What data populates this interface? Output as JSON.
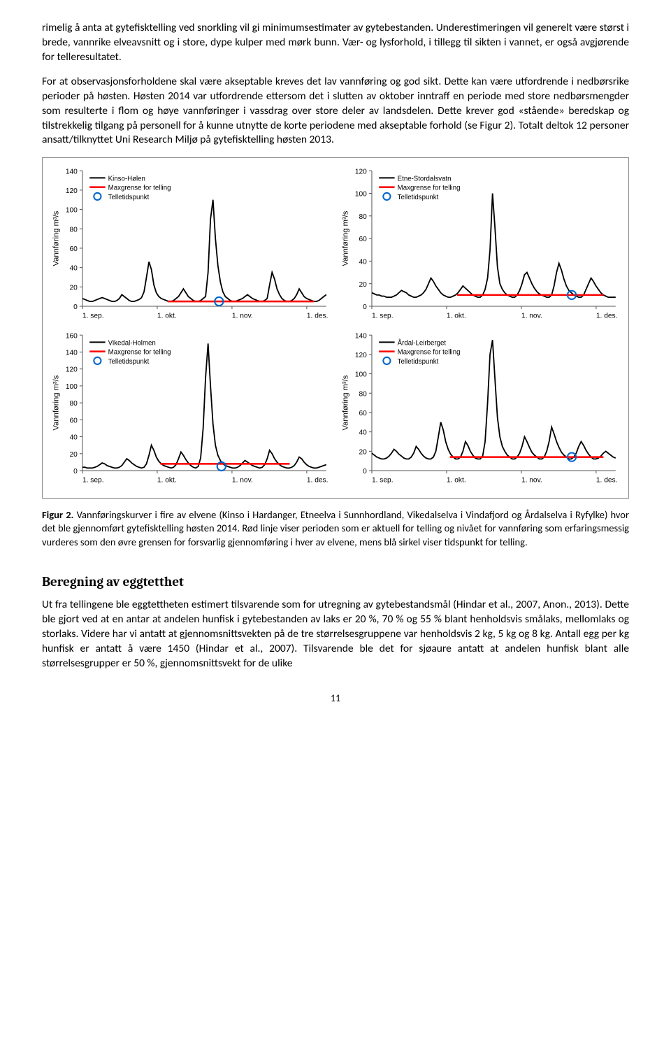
{
  "paragraphs": {
    "p1": "rimelig å anta at gytefisktelling ved snorkling vil gi minimumsestimater av gytebestanden. Underestimeringen vil generelt være størst i brede, vannrike elveavsnitt og i store, dype kulper med mørk bunn. Vær- og lysforhold, i tillegg til sikten i vannet, er også avgjørende for telleresultatet.",
    "p2": "For at observasjonsforholdene skal være akseptable kreves det lav vannføring og god sikt. Dette kan være utfordrende i nedbørsrike perioder på høsten. Høsten 2014 var utfordrende ettersom det i slutten av oktober inntraff en periode med store nedbørsmengder som resulterte i flom og høye vannføringer i vassdrag over store deler av landsdelen. Dette krever god «stående» beredskap og tilstrekkelig tilgang på personell for å kunne utnytte de korte periodene med akseptable forhold (se Figur 2). Totalt deltok 12 personer ansatt/tilknyttet Uni Research Miljø på gytefisktelling høsten 2013."
  },
  "caption": {
    "label": "Figur 2.",
    "text": " Vannføringskurver i fire av elvene (Kinso i Hardanger, Etneelva i Sunnhordland, Vikedalselva i Vindafjord og Årdalselva i Ryfylke) hvor det ble gjennomført gytefisktelling høsten 2014. Rød linje viser perioden som er aktuell for telling og nivået for vannføring som erfaringsmessig vurderes som den øvre grensen for forsvarlig gjennomføring i hver av elvene, mens blå sirkel viser tidspunkt for telling."
  },
  "section_heading": "Beregning av eggtetthet",
  "p3": "Ut fra tellingene ble eggtettheten estimert tilsvarende som for utregning av gytebestandsmål (Hindar et al., 2007, Anon., 2013). Dette ble gjort ved at en antar at andelen hunfisk i gytebestanden av laks er 20 %, 70 % og 55 % blant henholdsvis smålaks, mellomlaks og storlaks. Videre har vi antatt at gjennomsnittsvekten på de tre størrelsesgruppene var henholdsvis 2 kg, 5 kg og 8 kg. Antall egg per kg hunfisk er antatt å være 1450 (Hindar et al., 2007). Tilsvarende ble det for sjøaure antatt at andelen hunfisk blant alle størrelsesgrupper er 50 %, gjennomsnittsvekt for de ulike",
  "page_number": "11",
  "charts": [
    {
      "legend_series": "Kinso-Hølen",
      "legend_max": "Maxgrense for telling",
      "legend_point": "Telletidspunkt",
      "ylabel": "Vannføring m³/s",
      "ymax": 140,
      "ytick": 20,
      "xticks": [
        "1. sep.",
        "1. okt.",
        "1. nov.",
        "1. des."
      ],
      "line_color": "#000000",
      "max_color": "#ff0000",
      "point_color": "#0066cc",
      "bg": "#ffffff",
      "max_y": 5,
      "max_x0": 0.35,
      "max_x1": 0.95,
      "point_x": 0.56,
      "point_y": 5,
      "data": [
        8,
        7,
        6,
        5,
        5,
        6,
        7,
        8,
        9,
        8,
        7,
        6,
        5,
        5,
        6,
        8,
        12,
        10,
        8,
        6,
        5,
        5,
        6,
        7,
        9,
        15,
        30,
        46,
        38,
        22,
        14,
        10,
        8,
        7,
        6,
        5,
        5,
        6,
        8,
        10,
        14,
        18,
        14,
        10,
        8,
        6,
        5,
        5,
        6,
        8,
        10,
        35,
        90,
        110,
        70,
        42,
        25,
        15,
        10,
        8,
        6,
        5,
        5,
        6,
        7,
        8,
        10,
        12,
        10,
        8,
        7,
        6,
        5,
        5,
        6,
        8,
        22,
        35,
        28,
        18,
        12,
        8,
        6,
        5,
        5,
        6,
        8,
        12,
        18,
        14,
        10,
        8,
        7,
        6,
        5,
        5,
        6,
        8,
        10,
        12
      ]
    },
    {
      "legend_series": "Etne-Stordalsvatn",
      "legend_max": "Maxgrense for telling",
      "legend_point": "Telletidspunkt",
      "ylabel": "Vannføring m³/s",
      "ymax": 120,
      "ytick": 20,
      "xticks": [
        "1. sep.",
        "1. okt.",
        "1. nov.",
        "1. des."
      ],
      "line_color": "#000000",
      "max_color": "#ff0000",
      "point_color": "#0066cc",
      "bg": "#ffffff",
      "max_y": 10,
      "max_x0": 0.35,
      "max_x1": 0.95,
      "point_x": 0.82,
      "point_y": 10,
      "data": [
        12,
        11,
        10,
        10,
        9,
        9,
        8,
        8,
        8,
        9,
        10,
        12,
        14,
        13,
        12,
        10,
        9,
        8,
        8,
        9,
        10,
        12,
        15,
        20,
        25,
        22,
        18,
        15,
        12,
        10,
        9,
        8,
        8,
        9,
        10,
        12,
        15,
        18,
        16,
        14,
        12,
        10,
        9,
        8,
        8,
        10,
        15,
        25,
        50,
        100,
        70,
        35,
        20,
        15,
        12,
        10,
        9,
        8,
        8,
        10,
        14,
        20,
        28,
        30,
        25,
        20,
        16,
        13,
        11,
        10,
        9,
        8,
        8,
        10,
        18,
        30,
        38,
        32,
        24,
        18,
        14,
        12,
        10,
        9,
        8,
        8,
        10,
        15,
        20,
        25,
        22,
        18,
        15,
        12,
        10,
        9,
        8,
        8,
        8,
        8
      ]
    },
    {
      "legend_series": "Vikedal-Holmen",
      "legend_max": "Maxgrense for telling",
      "legend_point": "Telletidspunkt",
      "ylabel": "Vannføring m³/s",
      "ymax": 160,
      "ytick": 20,
      "xticks": [
        "1. sep.",
        "1. okt.",
        "1. nov.",
        "1. des."
      ],
      "line_color": "#000000",
      "max_color": "#ff0000",
      "point_color": "#0066cc",
      "bg": "#ffffff",
      "max_y": 8,
      "max_x0": 0.32,
      "max_x1": 0.85,
      "point_x": 0.57,
      "point_y": 5,
      "data": [
        4,
        4,
        3,
        3,
        3,
        4,
        5,
        7,
        9,
        8,
        6,
        5,
        4,
        3,
        3,
        4,
        6,
        10,
        14,
        12,
        9,
        7,
        5,
        4,
        3,
        4,
        8,
        18,
        30,
        24,
        16,
        11,
        8,
        6,
        5,
        4,
        3,
        4,
        7,
        14,
        22,
        18,
        13,
        9,
        6,
        4,
        3,
        5,
        15,
        50,
        110,
        150,
        100,
        55,
        30,
        18,
        12,
        8,
        6,
        5,
        4,
        3,
        3,
        4,
        6,
        9,
        12,
        10,
        8,
        6,
        5,
        4,
        3,
        4,
        7,
        14,
        24,
        20,
        14,
        10,
        7,
        5,
        4,
        3,
        3,
        4,
        6,
        10,
        16,
        14,
        10,
        7,
        5,
        4,
        3,
        3,
        4,
        5,
        6,
        7
      ]
    },
    {
      "legend_series": "Årdal-Leirberget",
      "legend_max": "Maxgrense for telling",
      "legend_point": "Telletidspunkt",
      "ylabel": "Vannføring m³/s",
      "ymax": 140,
      "ytick": 20,
      "xticks": [
        "1. sep.",
        "1. okt.",
        "1. nov.",
        "1. des."
      ],
      "line_color": "#000000",
      "max_color": "#ff0000",
      "point_color": "#0066cc",
      "bg": "#ffffff",
      "max_y": 14,
      "max_x0": 0.32,
      "max_x1": 0.95,
      "point_x": 0.82,
      "point_y": 14,
      "data": [
        18,
        16,
        14,
        13,
        12,
        12,
        13,
        15,
        18,
        22,
        20,
        17,
        15,
        13,
        12,
        12,
        14,
        18,
        25,
        22,
        18,
        15,
        13,
        12,
        12,
        14,
        20,
        35,
        50,
        42,
        30,
        22,
        17,
        14,
        12,
        12,
        14,
        20,
        30,
        26,
        20,
        16,
        13,
        12,
        12,
        15,
        30,
        70,
        120,
        135,
        95,
        55,
        35,
        25,
        20,
        16,
        14,
        12,
        12,
        14,
        18,
        25,
        35,
        30,
        24,
        19,
        16,
        14,
        12,
        12,
        14,
        20,
        30,
        45,
        38,
        30,
        24,
        19,
        16,
        14,
        12,
        12,
        14,
        18,
        25,
        30,
        26,
        21,
        17,
        14,
        12,
        12,
        13,
        15,
        18,
        20,
        18,
        16,
        14,
        13
      ]
    }
  ]
}
